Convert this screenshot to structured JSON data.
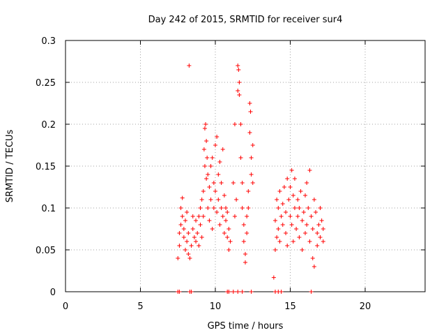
{
  "chart_data": {
    "type": "scatter",
    "title": "Day 242 of 2015, SRMTID for receiver sur4",
    "xlabel": "GPS time / hours",
    "ylabel": "SRMTID / TECUs",
    "xlim": [
      0,
      24
    ],
    "ylim": [
      0,
      0.3
    ],
    "xticks": [
      0,
      5,
      10,
      15,
      20
    ],
    "yticks": [
      0,
      0.05,
      0.1,
      0.15,
      0.2,
      0.25,
      0.3
    ],
    "xtick_labels": [
      "0",
      "5",
      "10",
      "15",
      "20"
    ],
    "ytick_labels": [
      "0",
      "0.05",
      "0.1",
      "0.15",
      "0.2",
      "0.25",
      "0.3"
    ],
    "grid": true,
    "legend": "none",
    "marker": "+",
    "series": [
      {
        "name": "SRMTID",
        "color": "#ff0000",
        "points": [
          [
            7.5,
            0.0
          ],
          [
            7.6,
            0.0
          ],
          [
            8.3,
            0.0
          ],
          [
            8.4,
            0.0
          ],
          [
            10.8,
            0.0
          ],
          [
            10.9,
            0.0
          ],
          [
            11.2,
            0.0
          ],
          [
            11.5,
            0.0
          ],
          [
            11.8,
            0.0
          ],
          [
            12.4,
            0.0
          ],
          [
            14.0,
            0.0
          ],
          [
            14.2,
            0.0
          ],
          [
            14.4,
            0.0
          ],
          [
            16.4,
            0.0
          ],
          [
            7.5,
            0.04
          ],
          [
            7.6,
            0.055
          ],
          [
            7.6,
            0.07
          ],
          [
            7.7,
            0.08
          ],
          [
            7.7,
            0.1
          ],
          [
            7.8,
            0.112
          ],
          [
            7.8,
            0.09
          ],
          [
            7.9,
            0.065
          ],
          [
            7.9,
            0.075
          ],
          [
            8.0,
            0.085
          ],
          [
            8.0,
            0.05
          ],
          [
            8.1,
            0.06
          ],
          [
            8.1,
            0.095
          ],
          [
            8.2,
            0.07
          ],
          [
            8.2,
            0.045
          ],
          [
            8.25,
            0.27
          ],
          [
            8.3,
            0.04
          ],
          [
            8.4,
            0.055
          ],
          [
            8.5,
            0.075
          ],
          [
            8.5,
            0.09
          ],
          [
            8.6,
            0.065
          ],
          [
            8.7,
            0.06
          ],
          [
            8.7,
            0.085
          ],
          [
            8.8,
            0.07
          ],
          [
            8.9,
            0.09
          ],
          [
            8.9,
            0.055
          ],
          [
            9.0,
            0.08
          ],
          [
            9.0,
            0.1
          ],
          [
            9.1,
            0.11
          ],
          [
            9.1,
            0.065
          ],
          [
            9.2,
            0.12
          ],
          [
            9.2,
            0.09
          ],
          [
            9.25,
            0.17
          ],
          [
            9.3,
            0.195
          ],
          [
            9.3,
            0.15
          ],
          [
            9.35,
            0.2
          ],
          [
            9.4,
            0.135
          ],
          [
            9.4,
            0.18
          ],
          [
            9.45,
            0.16
          ],
          [
            9.5,
            0.1
          ],
          [
            9.5,
            0.14
          ],
          [
            9.6,
            0.125
          ],
          [
            9.6,
            0.085
          ],
          [
            9.7,
            0.11
          ],
          [
            9.7,
            0.15
          ],
          [
            9.8,
            0.16
          ],
          [
            9.8,
            0.075
          ],
          [
            9.9,
            0.1
          ],
          [
            9.9,
            0.13
          ],
          [
            10.0,
            0.175
          ],
          [
            10.0,
            0.12
          ],
          [
            10.1,
            0.185
          ],
          [
            10.1,
            0.095
          ],
          [
            10.2,
            0.14
          ],
          [
            10.2,
            0.11
          ],
          [
            10.3,
            0.08
          ],
          [
            10.3,
            0.155
          ],
          [
            10.4,
            0.13
          ],
          [
            10.4,
            0.1
          ],
          [
            10.5,
            0.09
          ],
          [
            10.5,
            0.17
          ],
          [
            10.6,
            0.115
          ],
          [
            10.6,
            0.07
          ],
          [
            10.7,
            0.1
          ],
          [
            10.7,
            0.085
          ],
          [
            10.8,
            0.065
          ],
          [
            10.8,
            0.095
          ],
          [
            10.9,
            0.05
          ],
          [
            10.9,
            0.075
          ],
          [
            11.0,
            0.06
          ],
          [
            11.2,
            0.13
          ],
          [
            11.3,
            0.09
          ],
          [
            11.3,
            0.2
          ],
          [
            11.4,
            0.11
          ],
          [
            11.5,
            0.27
          ],
          [
            11.5,
            0.24
          ],
          [
            11.55,
            0.265
          ],
          [
            11.6,
            0.235
          ],
          [
            11.6,
            0.25
          ],
          [
            11.7,
            0.2
          ],
          [
            11.7,
            0.16
          ],
          [
            11.8,
            0.13
          ],
          [
            11.8,
            0.1
          ],
          [
            11.9,
            0.08
          ],
          [
            11.9,
            0.06
          ],
          [
            12.0,
            0.045
          ],
          [
            12.0,
            0.035
          ],
          [
            12.1,
            0.07
          ],
          [
            12.1,
            0.09
          ],
          [
            12.2,
            0.12
          ],
          [
            12.2,
            0.1
          ],
          [
            12.3,
            0.225
          ],
          [
            12.3,
            0.19
          ],
          [
            12.35,
            0.215
          ],
          [
            12.4,
            0.16
          ],
          [
            12.4,
            0.14
          ],
          [
            12.5,
            0.175
          ],
          [
            12.5,
            0.13
          ],
          [
            13.9,
            0.017
          ],
          [
            14.0,
            0.05
          ],
          [
            14.0,
            0.085
          ],
          [
            14.1,
            0.11
          ],
          [
            14.1,
            0.065
          ],
          [
            14.2,
            0.1
          ],
          [
            14.2,
            0.075
          ],
          [
            14.3,
            0.12
          ],
          [
            14.3,
            0.06
          ],
          [
            14.4,
            0.09
          ],
          [
            14.5,
            0.105
          ],
          [
            14.5,
            0.08
          ],
          [
            14.6,
            0.125
          ],
          [
            14.7,
            0.095
          ],
          [
            14.7,
            0.07
          ],
          [
            14.8,
            0.135
          ],
          [
            14.8,
            0.055
          ],
          [
            14.9,
            0.11
          ],
          [
            15.0,
            0.09
          ],
          [
            15.0,
            0.125
          ],
          [
            15.1,
            0.145
          ],
          [
            15.1,
            0.08
          ],
          [
            15.2,
            0.115
          ],
          [
            15.2,
            0.06
          ],
          [
            15.3,
            0.1
          ],
          [
            15.3,
            0.135
          ],
          [
            15.4,
            0.075
          ],
          [
            15.5,
            0.11
          ],
          [
            15.5,
            0.09
          ],
          [
            15.6,
            0.065
          ],
          [
            15.6,
            0.1
          ],
          [
            15.7,
            0.12
          ],
          [
            15.8,
            0.085
          ],
          [
            15.8,
            0.05
          ],
          [
            15.9,
            0.095
          ],
          [
            16.0,
            0.07
          ],
          [
            16.0,
            0.115
          ],
          [
            16.1,
            0.13
          ],
          [
            16.1,
            0.08
          ],
          [
            16.2,
            0.1
          ],
          [
            16.3,
            0.06
          ],
          [
            16.3,
            0.145
          ],
          [
            16.4,
            0.09
          ],
          [
            16.5,
            0.075
          ],
          [
            16.5,
            0.04
          ],
          [
            16.6,
            0.03
          ],
          [
            16.6,
            0.11
          ],
          [
            16.7,
            0.095
          ],
          [
            16.8,
            0.07
          ],
          [
            16.8,
            0.055
          ],
          [
            16.9,
            0.08
          ],
          [
            17.0,
            0.065
          ],
          [
            17.0,
            0.1
          ],
          [
            17.1,
            0.085
          ],
          [
            17.2,
            0.06
          ],
          [
            17.2,
            0.075
          ]
        ]
      }
    ]
  }
}
